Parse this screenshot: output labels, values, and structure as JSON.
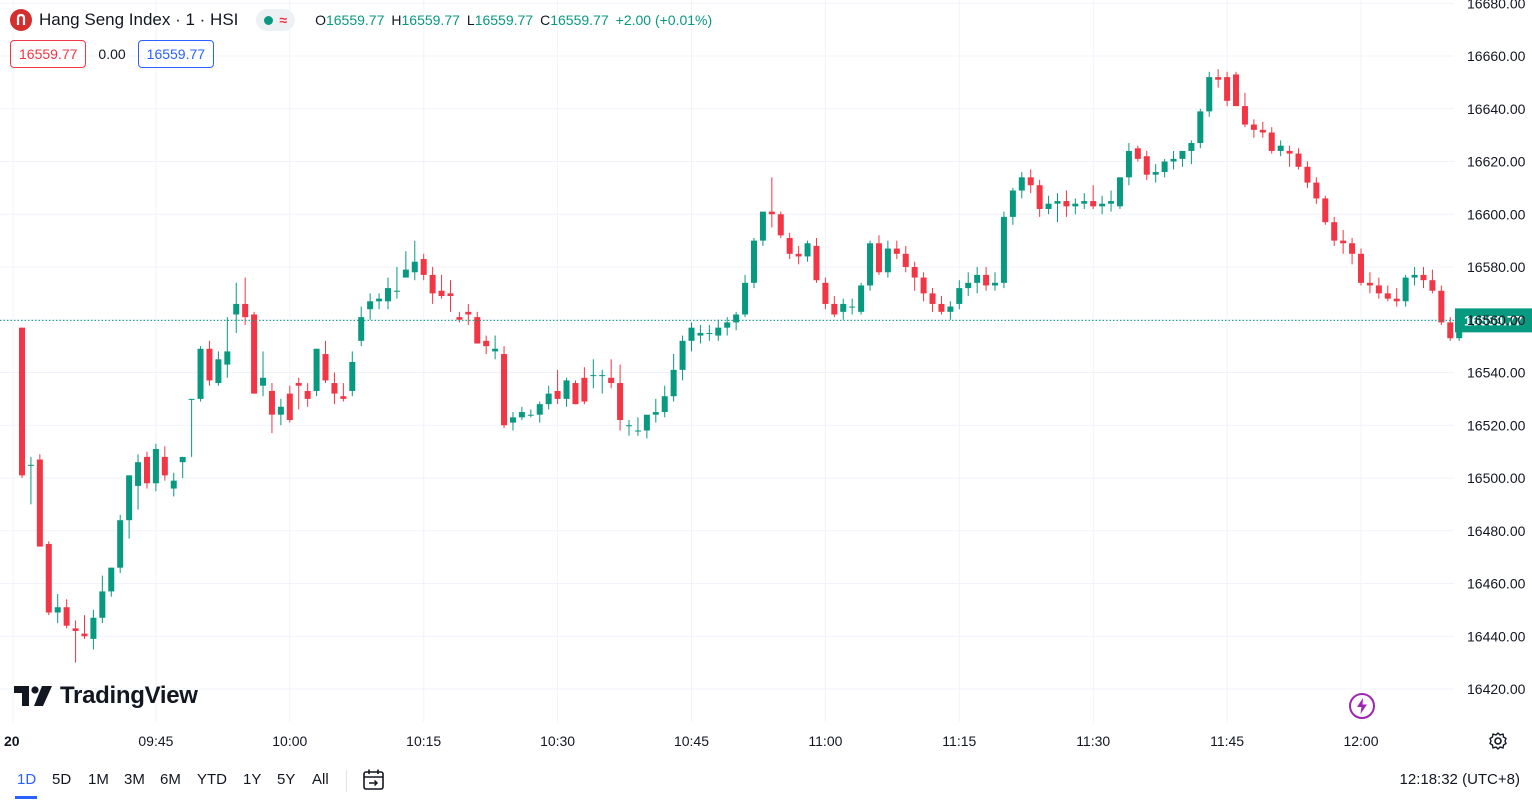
{
  "header": {
    "title": "Hang Seng Index · 1 · HSI",
    "ohlc": {
      "o_label": "O",
      "o_value": "16559.77",
      "h_label": "H",
      "h_value": "16559.77",
      "l_label": "L",
      "l_value": "16559.77",
      "c_label": "C",
      "c_value": "16559.77",
      "change": "+2.00 (+0.01%)"
    },
    "bid": "16559.77",
    "spread": "0.00",
    "ask": "16559.77"
  },
  "brand": "TradingView",
  "timeframes": [
    "1D",
    "5D",
    "1M",
    "3M",
    "6M",
    "YTD",
    "1Y",
    "5Y",
    "All"
  ],
  "active_timeframe": "1D",
  "clock": "12:18:32 (UTC+8)",
  "last_price_label": "16559.77",
  "icons": {
    "logo": "hang-seng-logo-icon",
    "status": "market-open-dot-icon",
    "delay": "wave-icon",
    "calendar": "calendar-goto-icon",
    "settings": "gear-icon",
    "lightning": "lightning-icon"
  },
  "colors": {
    "up": "#089981",
    "down": "#f23645",
    "accent": "#2962ff",
    "lightning": "#9c27b0"
  },
  "chart_data": {
    "type": "candlestick",
    "interval_minutes": 1,
    "ylim": [
      16410,
      16680
    ],
    "y_ticks": [
      16420,
      16440,
      16460,
      16480,
      16500,
      16520,
      16540,
      16560,
      16580,
      16600,
      16620,
      16640,
      16660,
      16680
    ],
    "y_tick_labels": [
      "16420.00",
      "16440.00",
      "16460.00",
      "16480.00",
      "16500.00",
      "16520.00",
      "16540.00",
      "16560.00",
      "16580.00",
      "16600.00",
      "16620.00",
      "16640.00",
      "16660.00",
      "16680.00"
    ],
    "x_tick_labels": [
      "20",
      "09:45",
      "10:00",
      "10:15",
      "10:30",
      "10:45",
      "11:00",
      "11:15",
      "11:30",
      "11:45",
      "12:00"
    ],
    "x_tick_times": [
      "09:29",
      "09:45",
      "10:00",
      "10:15",
      "10:30",
      "10:45",
      "11:00",
      "11:15",
      "11:30",
      "11:45",
      "12:00"
    ],
    "last_price": 16559.77,
    "first_time": "09:30",
    "candles": [
      [
        16557,
        16557,
        16500,
        16501
      ],
      [
        16505,
        16508,
        16490,
        16505
      ],
      [
        16507,
        16509,
        16474,
        16474
      ],
      [
        16475,
        16476,
        16448,
        16449
      ],
      [
        16449,
        16456,
        16445,
        16451
      ],
      [
        16451,
        16454,
        16443,
        16444
      ],
      [
        16443,
        16446,
        16430,
        16442
      ],
      [
        16441,
        16448,
        16439,
        16440
      ],
      [
        16439,
        16450,
        16435,
        16447
      ],
      [
        16447,
        16463,
        16445,
        16457
      ],
      [
        16457,
        16466,
        16455,
        16466
      ],
      [
        16466,
        16486,
        16464,
        16484
      ],
      [
        16484,
        16501,
        16477,
        16501
      ],
      [
        16497,
        16509,
        16488,
        16506
      ],
      [
        16508,
        16510,
        16496,
        16498
      ],
      [
        16498,
        16513,
        16495,
        16511
      ],
      [
        16508,
        16512,
        16499,
        16501
      ],
      [
        16496,
        16502,
        16493,
        16499
      ],
      [
        16506,
        16508,
        16500,
        16508
      ],
      [
        16530,
        16530,
        16508,
        16530
      ],
      [
        16530,
        16550,
        16529,
        16549
      ],
      [
        16549,
        16552,
        16535,
        16537
      ],
      [
        16536,
        16548,
        16535,
        16545
      ],
      [
        16543,
        16561,
        16538,
        16548
      ],
      [
        16562,
        16574,
        16555,
        16566
      ],
      [
        16566,
        16576,
        16558,
        16561
      ],
      [
        16562,
        16563,
        16532,
        16532
      ],
      [
        16535,
        16548,
        16531,
        16538
      ],
      [
        16533,
        16536,
        16517,
        16524
      ],
      [
        16524,
        16530,
        16520,
        16527
      ],
      [
        16532,
        16535,
        16521,
        16522
      ],
      [
        16536,
        16538,
        16526,
        16535
      ],
      [
        16533,
        16536,
        16527,
        16530
      ],
      [
        16533,
        16549,
        16531,
        16549
      ],
      [
        16547,
        16552,
        16536,
        16537
      ],
      [
        16536,
        16540,
        16528,
        16532
      ],
      [
        16531,
        16536,
        16529,
        16530
      ],
      [
        16533,
        16548,
        16531,
        16544
      ],
      [
        16552,
        16565,
        16550,
        16561
      ],
      [
        16564,
        16570,
        16560,
        16567
      ],
      [
        16567,
        16570,
        16564,
        16568
      ],
      [
        16567,
        16576,
        16564,
        16572
      ],
      [
        16571,
        16580,
        16568,
        16571
      ],
      [
        16576,
        16586,
        16576,
        16579
      ],
      [
        16578,
        16590,
        16575,
        16582
      ],
      [
        16583,
        16585,
        16575,
        16577
      ],
      [
        16577,
        16580,
        16566,
        16570
      ],
      [
        16571,
        16577,
        16568,
        16569
      ],
      [
        16570,
        16575,
        16563,
        16569
      ],
      [
        16561,
        16563,
        16559,
        16560
      ],
      [
        16563,
        16566,
        16558,
        16562
      ],
      [
        16561,
        16563,
        16551,
        16551
      ],
      [
        16552,
        16554,
        16547,
        16550
      ],
      [
        16548,
        16554,
        16545,
        16549
      ],
      [
        16547,
        16550,
        16519,
        16520
      ],
      [
        16521,
        16525,
        16518,
        16523
      ],
      [
        16523,
        16527,
        16522,
        16525
      ],
      [
        16524,
        16526,
        16523,
        16524
      ],
      [
        16524,
        16529,
        16521,
        16528
      ],
      [
        16528,
        16535,
        16526,
        16532
      ],
      [
        16533,
        16541,
        16528,
        16530
      ],
      [
        16530,
        16538,
        16527,
        16537
      ],
      [
        16536,
        16537,
        16528,
        16528
      ],
      [
        16538,
        16542,
        16528,
        16529
      ],
      [
        16539,
        16545,
        16534,
        16539
      ],
      [
        16539,
        16541,
        16532,
        16539
      ],
      [
        16538,
        16545,
        16534,
        16536
      ],
      [
        16536,
        16543,
        16518,
        16522
      ],
      [
        16520,
        16522,
        16516,
        16520
      ],
      [
        16518,
        16523,
        16516,
        16518
      ],
      [
        16518,
        16523,
        16515,
        16524
      ],
      [
        16524,
        16530,
        16521,
        16525
      ],
      [
        16525,
        16535,
        16523,
        16531
      ],
      [
        16531,
        16547,
        16529,
        16541
      ],
      [
        16541,
        16554,
        16537,
        16552
      ],
      [
        16552,
        16559,
        16548,
        16557
      ],
      [
        16554,
        16558,
        16551,
        16555
      ],
      [
        16555,
        16558,
        16552,
        16555
      ],
      [
        16554,
        16560,
        16552,
        16557
      ],
      [
        16557,
        16561,
        16554,
        16559
      ],
      [
        16559,
        16563,
        16556,
        16562
      ],
      [
        16562,
        16577,
        16561,
        16574
      ],
      [
        16574,
        16591,
        16572,
        16590
      ],
      [
        16590,
        16600,
        16588,
        16601
      ],
      [
        16601,
        16614,
        16595,
        16600
      ],
      [
        16600,
        16601,
        16591,
        16592
      ],
      [
        16591,
        16593,
        16583,
        16585
      ],
      [
        16585,
        16588,
        16581,
        16584
      ],
      [
        16584,
        16590,
        16582,
        16589
      ],
      [
        16588,
        16591,
        16574,
        16575
      ],
      [
        16574,
        16576,
        16564,
        16566
      ],
      [
        16566,
        16569,
        16561,
        16562
      ],
      [
        16563,
        16568,
        16560,
        16566
      ],
      [
        16565,
        16568,
        16562,
        16565
      ],
      [
        16563,
        16574,
        16562,
        16573
      ],
      [
        16573,
        16590,
        16571,
        16589
      ],
      [
        16589,
        16592,
        16577,
        16578
      ],
      [
        16578,
        16590,
        16576,
        16587
      ],
      [
        16587,
        16590,
        16583,
        16585
      ],
      [
        16585,
        16588,
        16578,
        16580
      ],
      [
        16580,
        16582,
        16571,
        16576
      ],
      [
        16576,
        16578,
        16567,
        16570
      ],
      [
        16570,
        16572,
        16563,
        16566
      ],
      [
        16566,
        16569,
        16562,
        16563
      ],
      [
        16563,
        16567,
        16560,
        16565
      ],
      [
        16566,
        16575,
        16564,
        16572
      ],
      [
        16572,
        16578,
        16569,
        16574
      ],
      [
        16574,
        16580,
        16570,
        16577
      ],
      [
        16577,
        16580,
        16571,
        16573
      ],
      [
        16573,
        16578,
        16571,
        16574
      ],
      [
        16574,
        16601,
        16572,
        16599
      ],
      [
        16599,
        16610,
        16596,
        16609
      ],
      [
        16609,
        16616,
        16606,
        16614
      ],
      [
        16614,
        16617,
        16608,
        16611
      ],
      [
        16611,
        16613,
        16599,
        16602
      ],
      [
        16602,
        16607,
        16600,
        16604
      ],
      [
        16604,
        16608,
        16597,
        16605
      ],
      [
        16605,
        16609,
        16599,
        16603
      ],
      [
        16603,
        16606,
        16600,
        16604
      ],
      [
        16604,
        16608,
        16602,
        16605
      ],
      [
        16605,
        16611,
        16602,
        16603
      ],
      [
        16603,
        16607,
        16600,
        16604
      ],
      [
        16604,
        16609,
        16601,
        16605
      ],
      [
        16603,
        16614,
        16602,
        16614
      ],
      [
        16614,
        16627,
        16611,
        16624
      ],
      [
        16625,
        16626,
        16620,
        16621
      ],
      [
        16622,
        16624,
        16613,
        16615
      ],
      [
        16615,
        16619,
        16612,
        16616
      ],
      [
        16616,
        16621,
        16614,
        16620
      ],
      [
        16620,
        16624,
        16617,
        16621
      ],
      [
        16621,
        16624,
        16618,
        16624
      ],
      [
        16624,
        16628,
        16619,
        16627
      ],
      [
        16627,
        16640,
        16625,
        16639
      ],
      [
        16639,
        16654,
        16637,
        16652
      ],
      [
        16652,
        16655,
        16648,
        16651
      ],
      [
        16652,
        16654,
        16641,
        16643
      ],
      [
        16653,
        16654,
        16641,
        16641
      ],
      [
        16641,
        16646,
        16633,
        16634
      ],
      [
        16634,
        16636,
        16629,
        16632
      ],
      [
        16632,
        16635,
        16629,
        16631
      ],
      [
        16631,
        16633,
        16623,
        16624
      ],
      [
        16624,
        16628,
        16622,
        16626
      ],
      [
        16624,
        16626,
        16618,
        16623
      ],
      [
        16623,
        16625,
        16617,
        16618
      ],
      [
        16618,
        16620,
        16610,
        16612
      ],
      [
        16612,
        16614,
        16604,
        16606
      ],
      [
        16606,
        16607,
        16596,
        16597
      ],
      [
        16597,
        16599,
        16588,
        16590
      ],
      [
        16590,
        16594,
        16585,
        16589
      ],
      [
        16589,
        16591,
        16581,
        16585
      ],
      [
        16585,
        16587,
        16573,
        16574
      ],
      [
        16574,
        16578,
        16570,
        16573
      ],
      [
        16573,
        16576,
        16568,
        16570
      ],
      [
        16570,
        16573,
        16567,
        16568
      ],
      [
        16568,
        16572,
        16565,
        16567
      ],
      [
        16567,
        16577,
        16565,
        16576
      ],
      [
        16576,
        16580,
        16573,
        16577
      ],
      [
        16577,
        16580,
        16572,
        16575
      ],
      [
        16575,
        16579,
        16570,
        16571
      ],
      [
        16571,
        16573,
        16558,
        16559
      ],
      [
        16559,
        16561,
        16552,
        16553
      ],
      [
        16553,
        16559,
        16552,
        16558
      ],
      [
        16558,
        16560,
        16557,
        16560
      ]
    ]
  }
}
